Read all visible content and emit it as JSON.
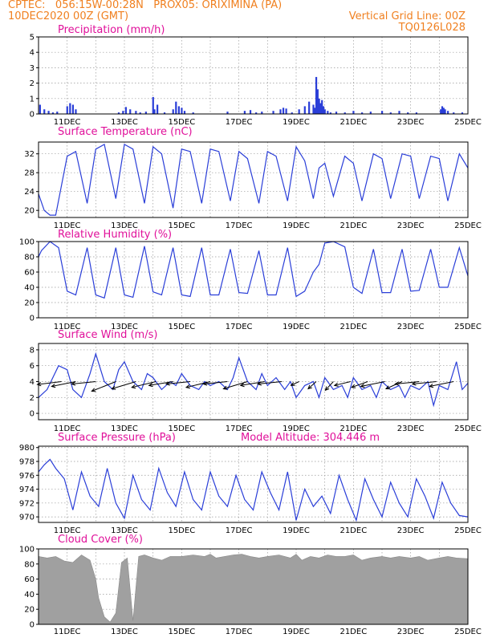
{
  "header": {
    "line1": "CPTEC:   056:15W-00:28N   PROX05: ORIXIMINA (PA)",
    "line2": "10DEC2020 00Z (GMT)",
    "right1": "Vertical Grid Line: 00Z",
    "right2": "TQ0126L028"
  },
  "colors": {
    "line": "#2a3ed8",
    "bar": "#2a3ed8",
    "cloud": "#a0a0a0",
    "title": "#e0109a",
    "header": "#f08020",
    "wind": "#000000"
  },
  "x_labels": [
    "11DEC",
    "13DEC",
    "15DEC",
    "17DEC",
    "19DEC",
    "21DEC",
    "23DEC",
    "25DEC"
  ],
  "chart_data": [
    {
      "type": "bar",
      "title": "Precipitation (mm/h)",
      "ylim": [
        0,
        5
      ],
      "yticks": [
        0,
        1,
        2,
        3,
        4,
        5
      ],
      "x": [
        10.05,
        10.2,
        10.35,
        10.5,
        10.65,
        11.0,
        11.1,
        11.2,
        11.3,
        12.8,
        12.95,
        13.05,
        13.2,
        13.4,
        13.55,
        13.75,
        14.0,
        14.05,
        14.15,
        14.4,
        14.7,
        14.8,
        14.9,
        15.0,
        15.1,
        15.4,
        16.6,
        17.2,
        17.4,
        17.6,
        17.8,
        18.2,
        18.45,
        18.55,
        18.65,
        18.85,
        19.1,
        19.3,
        19.45,
        19.6,
        19.65,
        19.7,
        19.75,
        19.8,
        19.85,
        19.9,
        19.95,
        20.0,
        20.1,
        20.2,
        20.4,
        20.7,
        21.0,
        21.3,
        21.6,
        22.0,
        22.3,
        22.6,
        22.9,
        23.2,
        24.05,
        24.1,
        24.15,
        24.2,
        24.3,
        24.5,
        24.8
      ],
      "values": [
        0.6,
        0.3,
        0.2,
        0.1,
        0.15,
        0.5,
        0.7,
        0.6,
        0.3,
        0.1,
        0.2,
        0.45,
        0.3,
        0.2,
        0.1,
        0.15,
        1.1,
        0.3,
        0.6,
        0.1,
        0.3,
        0.8,
        0.5,
        0.4,
        0.2,
        0.1,
        0.15,
        0.2,
        0.25,
        0.1,
        0.15,
        0.2,
        0.3,
        0.4,
        0.35,
        0.1,
        0.3,
        0.5,
        0.8,
        0.6,
        0.4,
        2.4,
        1.6,
        1.0,
        0.7,
        0.9,
        0.5,
        0.3,
        0.2,
        0.1,
        0.15,
        0.1,
        0.2,
        0.1,
        0.15,
        0.2,
        0.1,
        0.2,
        0.1,
        0.1,
        0.3,
        0.5,
        0.4,
        0.3,
        0.2,
        0.1,
        0.1
      ]
    },
    {
      "type": "line",
      "title": "Surface Temperature (nC)",
      "ylim": [
        18.5,
        34.5
      ],
      "yticks": [
        20,
        24,
        28,
        32
      ],
      "x": [
        10.0,
        10.2,
        10.4,
        10.6,
        11.0,
        11.3,
        11.7,
        12.0,
        12.3,
        12.7,
        13.0,
        13.3,
        13.7,
        14.0,
        14.3,
        14.7,
        15.0,
        15.3,
        15.7,
        16.0,
        16.3,
        16.7,
        17.0,
        17.3,
        17.7,
        18.0,
        18.3,
        18.7,
        19.0,
        19.3,
        19.6,
        19.8,
        20.0,
        20.3,
        20.7,
        21.0,
        21.3,
        21.7,
        22.0,
        22.3,
        22.7,
        23.0,
        23.3,
        23.7,
        24.0,
        24.3,
        24.7,
        25.0
      ],
      "values": [
        23.5,
        20,
        19,
        19,
        31.5,
        32.5,
        21.5,
        33,
        34,
        22.5,
        34,
        33,
        21.5,
        33.5,
        32,
        20.5,
        33,
        32.5,
        21.5,
        33,
        32.5,
        22,
        32.5,
        31,
        21.5,
        32.5,
        31.5,
        22,
        33.5,
        30.5,
        22.5,
        29,
        30,
        23,
        31.5,
        30,
        22,
        32,
        31,
        22.5,
        32,
        31.5,
        22.5,
        31.5,
        31,
        22,
        32,
        29
      ]
    },
    {
      "type": "line",
      "title": "Relative Humidity (%)",
      "ylim": [
        0,
        100
      ],
      "yticks": [
        0,
        20,
        40,
        60,
        80,
        100
      ],
      "x": [
        10.0,
        10.1,
        10.4,
        10.7,
        11.0,
        11.3,
        11.7,
        12.0,
        12.3,
        12.7,
        13.0,
        13.3,
        13.7,
        14.0,
        14.3,
        14.7,
        15.0,
        15.3,
        15.7,
        16.0,
        16.3,
        16.7,
        17.0,
        17.3,
        17.7,
        18.0,
        18.3,
        18.7,
        19.0,
        19.3,
        19.6,
        19.8,
        20.0,
        20.3,
        20.7,
        21.0,
        21.3,
        21.7,
        22.0,
        22.3,
        22.7,
        23.0,
        23.3,
        23.7,
        24.0,
        24.3,
        24.7,
        25.0
      ],
      "values": [
        80,
        88,
        100,
        92,
        35,
        30,
        92,
        30,
        26,
        92,
        30,
        27,
        94,
        34,
        30,
        92,
        30,
        28,
        92,
        30,
        30,
        90,
        33,
        32,
        88,
        30,
        30,
        92,
        28,
        35,
        60,
        70,
        98,
        100,
        93,
        40,
        32,
        90,
        33,
        33,
        90,
        35,
        36,
        90,
        40,
        40,
        92,
        55
      ]
    },
    {
      "type": "line",
      "title": "Surface Wind (m/s)",
      "ylim": [
        -0.8,
        8.8
      ],
      "yticks": [
        0,
        2,
        4,
        6,
        8
      ],
      "x": [
        10.0,
        10.3,
        10.5,
        10.7,
        11.0,
        11.2,
        11.5,
        11.8,
        12.0,
        12.3,
        12.6,
        12.8,
        13.0,
        13.3,
        13.6,
        13.8,
        14.0,
        14.3,
        14.6,
        14.8,
        15.0,
        15.3,
        15.6,
        15.8,
        16.0,
        16.3,
        16.6,
        16.8,
        17.0,
        17.3,
        17.6,
        17.8,
        18.0,
        18.3,
        18.6,
        18.8,
        19.0,
        19.3,
        19.6,
        19.8,
        20.0,
        20.3,
        20.6,
        20.8,
        21.0,
        21.3,
        21.6,
        21.8,
        22.0,
        22.3,
        22.6,
        22.8,
        23.0,
        23.3,
        23.6,
        23.8,
        24.0,
        24.3,
        24.6,
        24.8,
        25.0
      ],
      "values": [
        2,
        3,
        4.5,
        6,
        5.5,
        3,
        2,
        5,
        7.5,
        4,
        3,
        5.5,
        6.5,
        4,
        3,
        5,
        4.5,
        3,
        4,
        3.5,
        5,
        3.5,
        3,
        4,
        3.5,
        4,
        3,
        4.5,
        7,
        4,
        3,
        5,
        3.5,
        4.5,
        3,
        4,
        2,
        3.5,
        4,
        2,
        4.5,
        3,
        3.5,
        2,
        4.5,
        3,
        3.5,
        2,
        4,
        3,
        3.5,
        2,
        3.5,
        3,
        4,
        1,
        3.5,
        3,
        6.5,
        3,
        3.8
      ]
    },
    {
      "type": "line",
      "title": "Surface Pressure (hPa)",
      "annotation": "Model Altitude: 304.446 m",
      "ylim": [
        969.2,
        980.2
      ],
      "yticks": [
        970,
        972,
        974,
        976,
        978,
        980
      ],
      "x": [
        10.0,
        10.2,
        10.4,
        10.6,
        10.9,
        11.2,
        11.5,
        11.8,
        12.1,
        12.4,
        12.7,
        13.0,
        13.3,
        13.6,
        13.9,
        14.2,
        14.5,
        14.8,
        15.1,
        15.4,
        15.7,
        16.0,
        16.3,
        16.6,
        16.9,
        17.2,
        17.5,
        17.8,
        18.1,
        18.4,
        18.7,
        19.0,
        19.3,
        19.6,
        19.9,
        20.2,
        20.5,
        20.8,
        21.1,
        21.4,
        21.7,
        22.0,
        22.3,
        22.6,
        22.9,
        23.2,
        23.5,
        23.8,
        24.1,
        24.4,
        24.7,
        25.0
      ],
      "values": [
        976.5,
        977.5,
        978.3,
        977,
        975.5,
        971,
        976.5,
        973,
        971.5,
        977,
        972,
        969.8,
        976,
        972.5,
        971,
        977,
        973.5,
        971.5,
        976.5,
        972.5,
        971,
        976.5,
        973,
        971.5,
        976,
        972.5,
        971,
        976.5,
        973.5,
        971,
        976.5,
        969.5,
        974,
        971.5,
        973,
        970.5,
        976,
        972.5,
        969.5,
        975.5,
        972.5,
        970,
        975,
        972,
        970,
        975.5,
        973,
        969.8,
        975,
        972,
        970.2,
        970
      ]
    },
    {
      "type": "area",
      "title": "Cloud Cover (%)",
      "ylim": [
        0,
        100
      ],
      "yticks": [
        0,
        20,
        40,
        60,
        80,
        100
      ],
      "x": [
        10.0,
        10.3,
        10.6,
        10.9,
        11.2,
        11.5,
        11.8,
        12.0,
        12.1,
        12.3,
        12.5,
        12.7,
        12.9,
        13.1,
        13.3,
        13.5,
        13.7,
        14.0,
        14.3,
        14.6,
        15.0,
        15.4,
        15.8,
        16.0,
        16.2,
        16.5,
        16.8,
        17.1,
        17.4,
        17.7,
        18.0,
        18.4,
        18.8,
        19.0,
        19.2,
        19.5,
        19.8,
        20.1,
        20.4,
        20.7,
        21.0,
        21.3,
        21.6,
        22.0,
        22.3,
        22.6,
        23.0,
        23.3,
        23.6,
        24.0,
        24.3,
        24.6,
        25.0
      ],
      "values": [
        90,
        88,
        90,
        84,
        82,
        92,
        85,
        60,
        35,
        10,
        3,
        15,
        82,
        88,
        5,
        90,
        92,
        88,
        85,
        90,
        90,
        92,
        90,
        93,
        88,
        90,
        92,
        93,
        90,
        88,
        90,
        92,
        88,
        93,
        85,
        90,
        88,
        92,
        90,
        90,
        92,
        85,
        88,
        90,
        88,
        90,
        88,
        90,
        85,
        88,
        90,
        88,
        87
      ]
    }
  ],
  "wind_vectors": {
    "x": [
      10.8,
      11.3,
      12.0,
      12.7,
      13.4,
      14.1,
      14.7,
      15.3,
      16.0,
      16.6,
      17.3,
      17.9,
      18.5,
      19.1,
      19.7,
      20.3,
      20.9,
      21.5,
      22.1,
      22.7,
      23.3,
      23.9,
      24.5
    ],
    "u": [
      -3,
      -3,
      -3,
      -3,
      -3,
      -3,
      -3,
      -3,
      -3,
      -3,
      -3,
      -3,
      -3,
      -1,
      -1,
      -1,
      -2,
      -2,
      -3,
      -2,
      -3,
      -3,
      -3
    ],
    "v": [
      0.6,
      1.0,
      0.5,
      2.0,
      1.5,
      1.2,
      0.8,
      0.5,
      1.2,
      0.5,
      1.5,
      0.8,
      0.5,
      0.8,
      1.5,
      1.8,
      0.8,
      1.2,
      1.0,
      1.5,
      0.5,
      0.5,
      1.0
    ]
  }
}
